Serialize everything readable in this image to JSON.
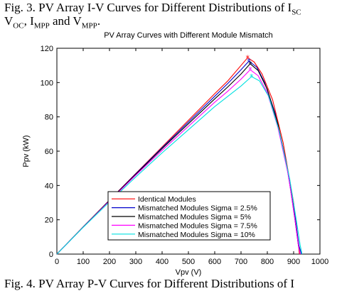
{
  "caption": {
    "fig_top_line1": "Fig. 3.     PV Array I-V Curves for Different Distributions of I",
    "fig_top_line1_sub": "SC",
    "fig_top_line2_a": "V",
    "fig_top_line2_sub1": "OC",
    "fig_top_line2_b": ", I",
    "fig_top_line2_sub2": "MPP",
    "fig_top_line2_c": " and V",
    "fig_top_line2_sub3": "MPP",
    "fig_top_line2_d": ".",
    "fig_bottom": "Fig. 4.     PV Array P-V Curves for Different Distributions of I"
  },
  "chart_data": {
    "type": "line",
    "title": "PV Array Curves with Different Module Mismatch",
    "xlabel": "Vpv (V)",
    "ylabel": "Ppv (kW)",
    "xlim": [
      0,
      1000
    ],
    "ylim": [
      0,
      120
    ],
    "xticks": [
      0,
      100,
      200,
      300,
      400,
      500,
      600,
      700,
      800,
      900,
      1000
    ],
    "yticks": [
      0,
      20,
      40,
      60,
      80,
      100,
      120
    ],
    "grid": false,
    "legend_position": "bottom-left",
    "series": [
      {
        "name": "Identical Modules",
        "color": "#ff0000",
        "marker": "*",
        "points": [
          [
            0,
            0
          ],
          [
            100,
            15.8
          ],
          [
            200,
            31.5
          ],
          [
            300,
            47
          ],
          [
            400,
            62.5
          ],
          [
            500,
            78
          ],
          [
            600,
            93.5
          ],
          [
            650,
            101
          ],
          [
            700,
            110
          ],
          [
            725,
            114.5
          ],
          [
            750,
            112
          ],
          [
            780,
            105
          ],
          [
            820,
            90
          ],
          [
            860,
            65
          ],
          [
            900,
            30
          ],
          [
            915,
            10
          ],
          [
            922,
            0
          ]
        ]
      },
      {
        "name": "Mismatched Modules Sigma = 2.5%",
        "color": "#0000cc",
        "marker": "*",
        "points": [
          [
            0,
            0
          ],
          [
            100,
            15.8
          ],
          [
            200,
            31.4
          ],
          [
            300,
            46.8
          ],
          [
            400,
            62
          ],
          [
            500,
            77
          ],
          [
            600,
            92
          ],
          [
            650,
            99.5
          ],
          [
            700,
            107.5
          ],
          [
            730,
            112.5
          ],
          [
            760,
            109
          ],
          [
            790,
            100
          ],
          [
            830,
            82
          ],
          [
            870,
            55
          ],
          [
            905,
            22
          ],
          [
            920,
            5
          ],
          [
            930,
            0
          ]
        ]
      },
      {
        "name": "Mismatched Modules Sigma = 5%",
        "color": "#000000",
        "marker": "*",
        "points": [
          [
            0,
            0
          ],
          [
            100,
            15.8
          ],
          [
            200,
            31.3
          ],
          [
            300,
            46.5
          ],
          [
            400,
            61.5
          ],
          [
            500,
            76
          ],
          [
            600,
            90.5
          ],
          [
            650,
            97.5
          ],
          [
            700,
            105
          ],
          [
            735,
            111
          ],
          [
            765,
            107
          ],
          [
            800,
            96
          ],
          [
            840,
            76
          ],
          [
            880,
            47
          ],
          [
            905,
            20
          ],
          [
            918,
            5
          ],
          [
            925,
            0
          ]
        ]
      },
      {
        "name": "Mismatched Modules Sigma = 7.5%",
        "color": "#ff00ff",
        "marker": "*",
        "points": [
          [
            0,
            0
          ],
          [
            100,
            15.7
          ],
          [
            200,
            31
          ],
          [
            300,
            46
          ],
          [
            400,
            60.5
          ],
          [
            500,
            74.5
          ],
          [
            600,
            88.5
          ],
          [
            650,
            95
          ],
          [
            700,
            102
          ],
          [
            735,
            107.5
          ],
          [
            765,
            104
          ],
          [
            800,
            94
          ],
          [
            840,
            74
          ],
          [
            880,
            46
          ],
          [
            905,
            20
          ],
          [
            918,
            5
          ],
          [
            925,
            0
          ]
        ]
      },
      {
        "name": "Mismatched Modules Sigma = 10%",
        "color": "#00e0e0",
        "marker": "*",
        "points": [
          [
            0,
            0
          ],
          [
            100,
            15.6
          ],
          [
            200,
            30.5
          ],
          [
            300,
            45
          ],
          [
            400,
            59
          ],
          [
            500,
            72.5
          ],
          [
            600,
            86
          ],
          [
            650,
            92
          ],
          [
            700,
            98
          ],
          [
            740,
            103.5
          ],
          [
            770,
            101
          ],
          [
            805,
            92
          ],
          [
            845,
            72
          ],
          [
            885,
            44
          ],
          [
            910,
            20
          ],
          [
            925,
            5
          ],
          [
            932,
            0
          ]
        ]
      }
    ]
  }
}
